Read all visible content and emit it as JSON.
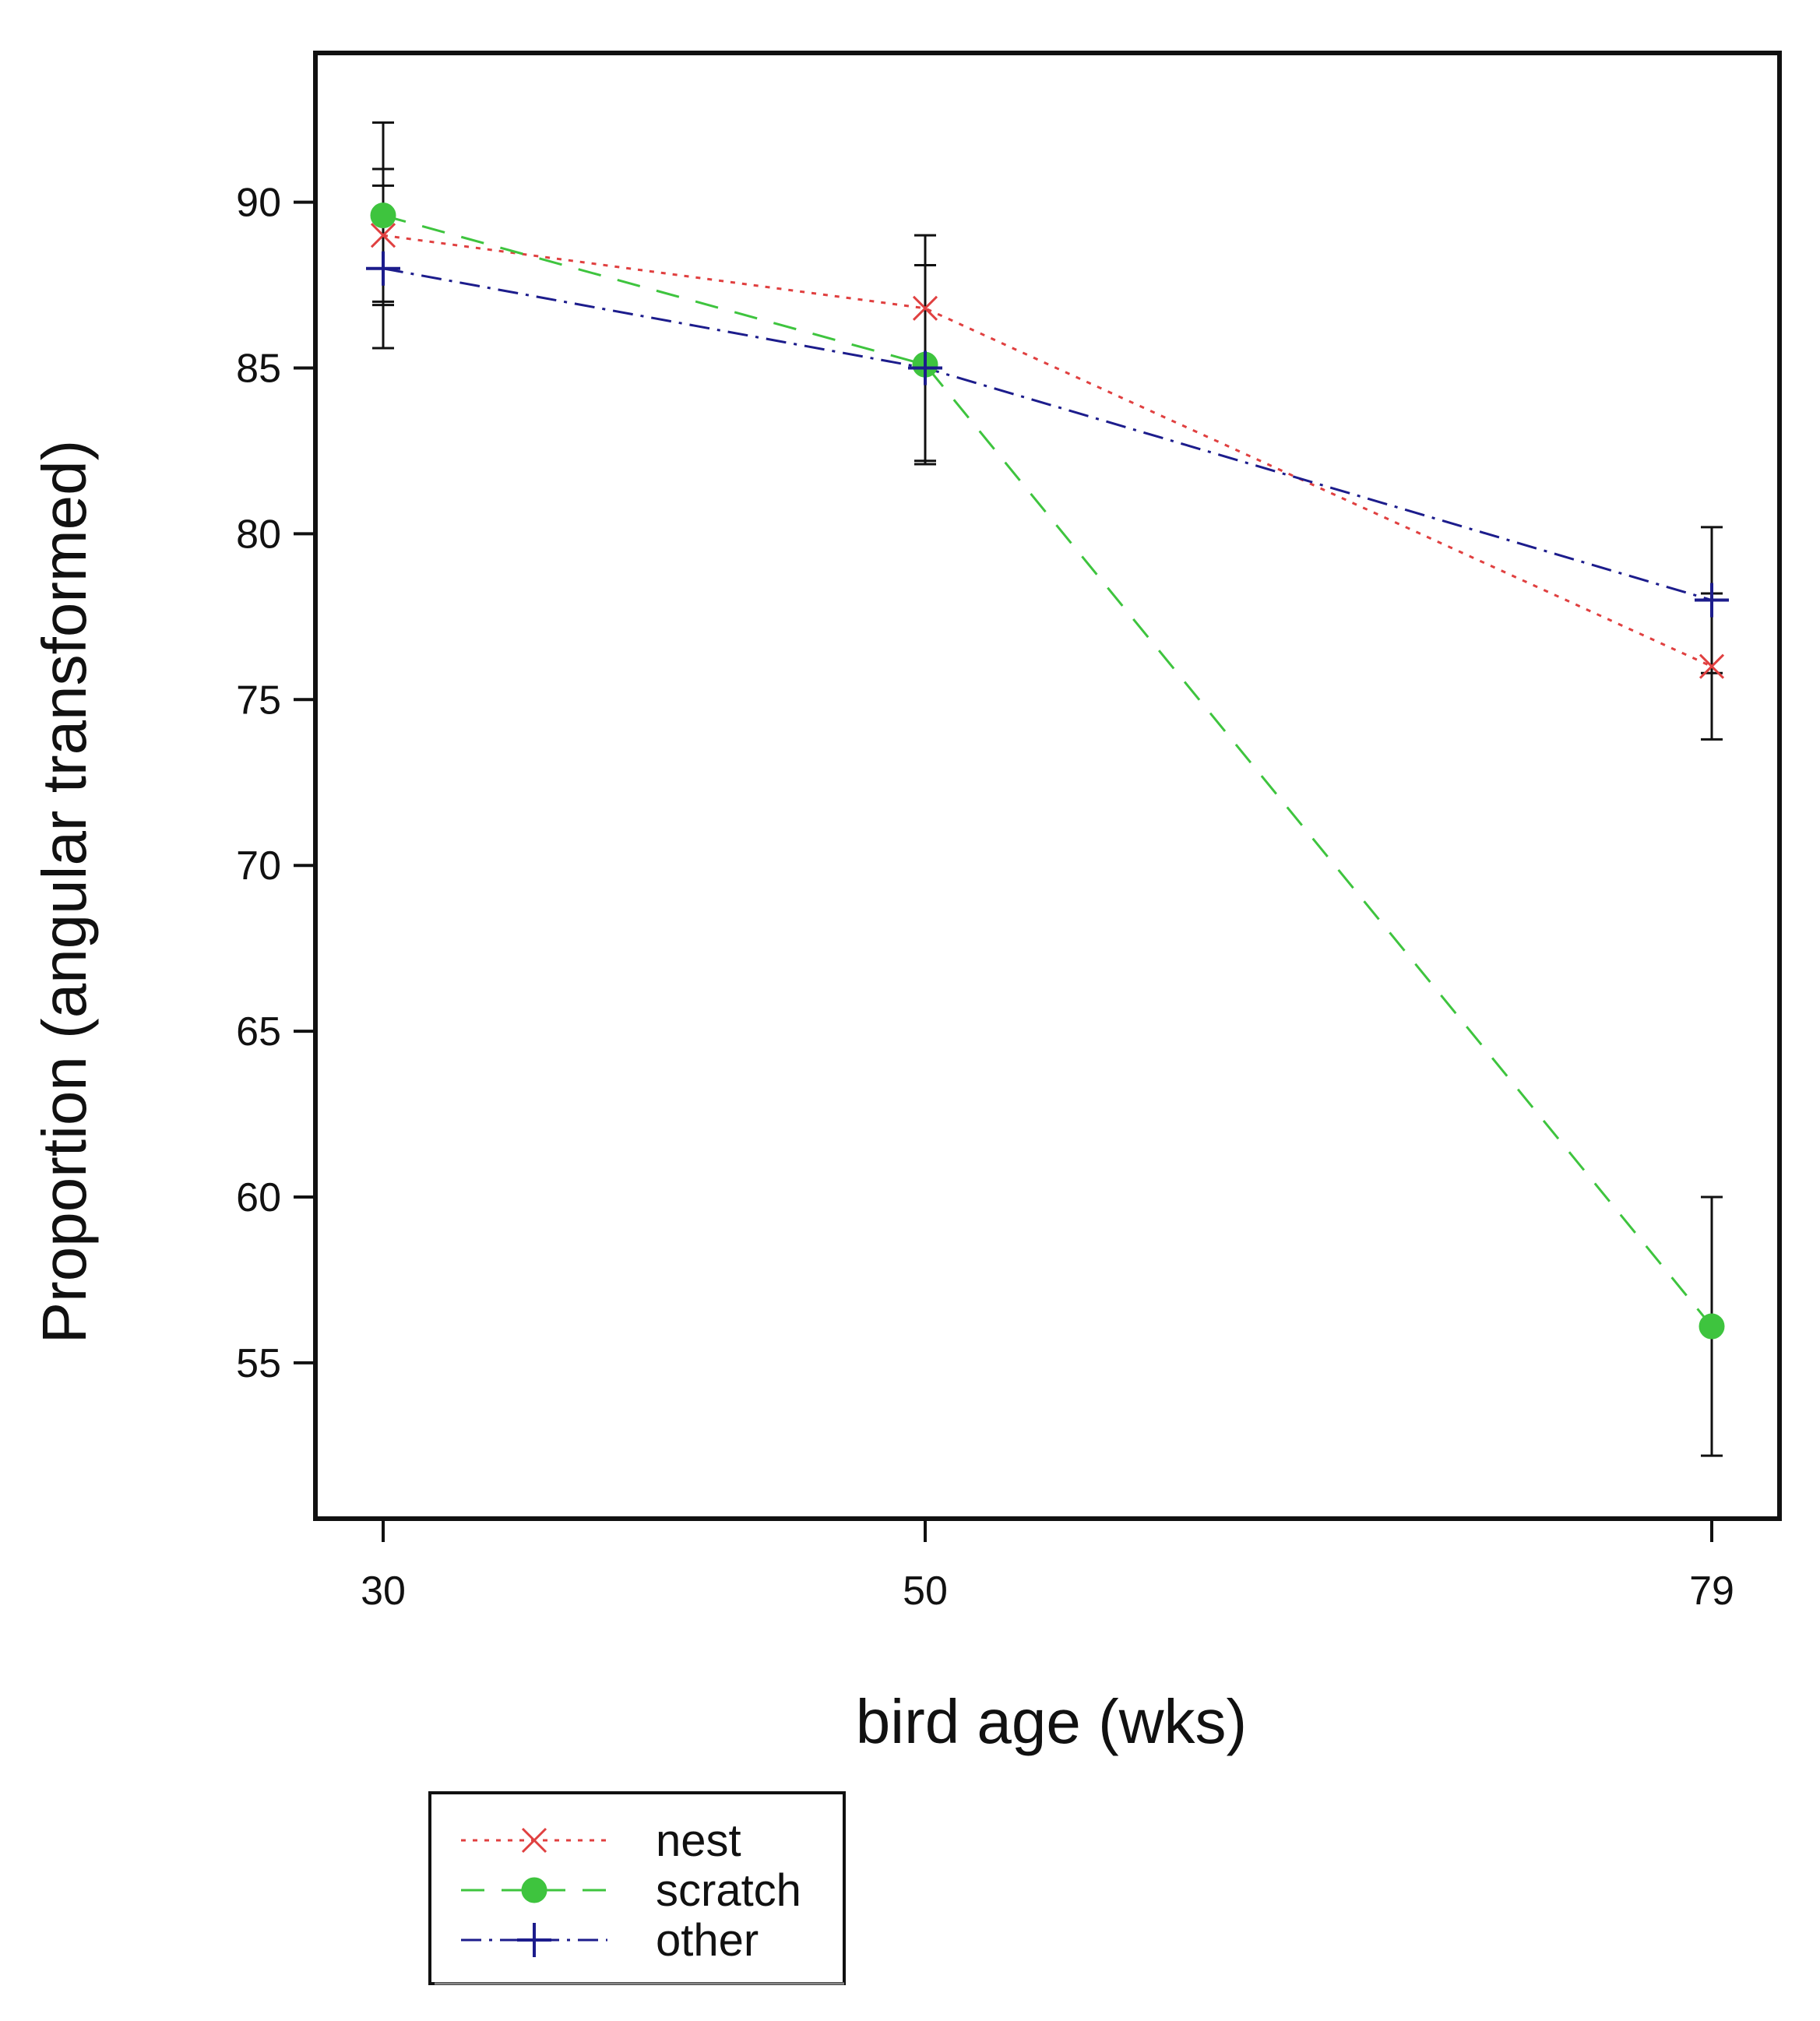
{
  "chart_data": {
    "type": "line",
    "title": "",
    "xlabel": "bird age (wks)",
    "ylabel": "Proportion (angular transformed)",
    "x": [
      30,
      50,
      79
    ],
    "x_tick_labels": [
      "30",
      "50",
      "79"
    ],
    "y_ticks": [
      55,
      60,
      65,
      70,
      75,
      80,
      85,
      90
    ],
    "y_tick_labels": [
      "55",
      "60",
      "65",
      "70",
      "75",
      "80",
      "85",
      "90"
    ],
    "ylim": [
      50.3,
      94.5
    ],
    "grid": false,
    "legend_position": "bottom-left",
    "series": [
      {
        "name": "nest",
        "color": "#e04040",
        "marker": "x",
        "line_style": "dotted",
        "values": [
          89.0,
          86.8,
          76.0
        ],
        "error_low": [
          87.0,
          82.2,
          73.8
        ],
        "error_high": [
          91.0,
          89.0,
          78.2
        ]
      },
      {
        "name": "scratch",
        "color": "#3ec43e",
        "marker": "circle",
        "line_style": "dashed",
        "values": [
          89.6,
          85.1,
          56.1
        ],
        "error_low": [
          86.9,
          82.1,
          52.2
        ],
        "error_high": [
          92.4,
          88.1,
          60.0
        ]
      },
      {
        "name": "other",
        "color": "#1c1c8c",
        "marker": "plus",
        "line_style": "dashdot",
        "values": [
          88.0,
          85.0,
          78.0
        ],
        "error_low": [
          85.6,
          82.1,
          75.8
        ],
        "error_high": [
          90.5,
          88.1,
          80.2
        ]
      }
    ]
  }
}
